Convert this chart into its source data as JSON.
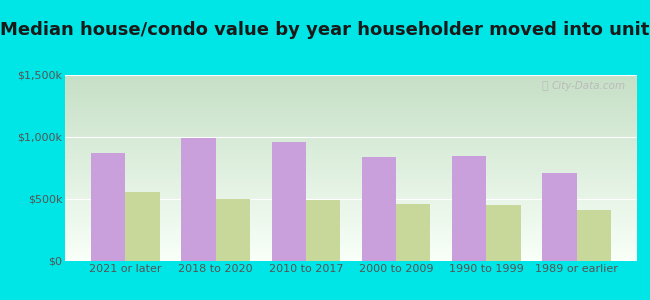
{
  "title": "Median house/condo value by year householder moved into unit",
  "categories": [
    "2021 or later",
    "2018 to 2020",
    "2010 to 2017",
    "2000 to 2009",
    "1990 to 1999",
    "1989 or earlier"
  ],
  "louisville_values": [
    870000,
    990000,
    960000,
    840000,
    845000,
    710000
  ],
  "colorado_values": [
    560000,
    500000,
    490000,
    460000,
    455000,
    415000
  ],
  "louisville_color": "#c9a0dc",
  "colorado_color": "#c8d89a",
  "ylim": [
    0,
    1500000
  ],
  "yticks": [
    0,
    500000,
    1000000,
    1500000
  ],
  "ytick_labels": [
    "$0",
    "$500k",
    "$1,000k",
    "$1,500k"
  ],
  "background_color": "#00e5e5",
  "grad_top_color": "#c5dfc5",
  "grad_bottom_color": "#f8fff8",
  "title_fontsize": 13,
  "tick_fontsize": 8,
  "legend_fontsize": 9,
  "bar_width": 0.38,
  "watermark": "City-Data.com"
}
